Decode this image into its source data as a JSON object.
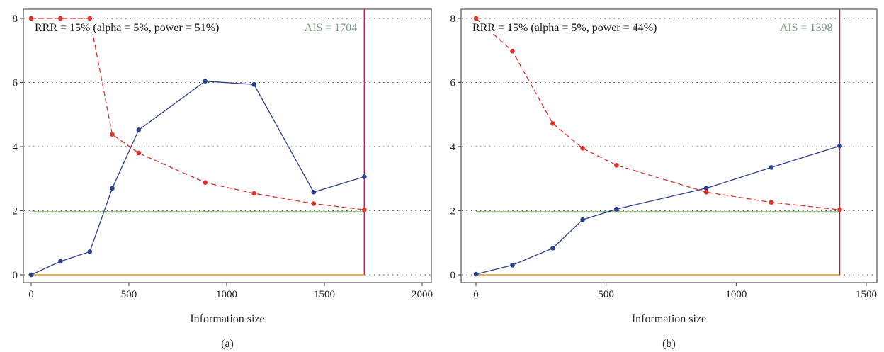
{
  "chart_data": [
    {
      "type": "line",
      "panel_label": "(a)",
      "xlabel": "Information size",
      "ylabel": "",
      "xlim": [
        0,
        2000
      ],
      "ylim": [
        0,
        8
      ],
      "xticks": [
        0,
        500,
        1000,
        1500,
        2000
      ],
      "yticks": [
        0,
        2,
        4,
        6,
        8
      ],
      "grid": "dotted horizontal",
      "annotation": "RRR = 15% (alpha = 5%, power = 51%)",
      "ais": {
        "label": "AIS = 1704",
        "x": 1704,
        "color": "#c2185b",
        "label_color": "#7a9e87"
      },
      "reference_lines": [
        {
          "y": 1.96,
          "color": "#4a7a3a"
        },
        {
          "y": 0,
          "color": "#e69500"
        }
      ],
      "series": [
        {
          "color": "#2a3f8f",
          "dash": "solid",
          "x": [
            0,
            150,
            300,
            415,
            550,
            890,
            1140,
            1445,
            1704
          ],
          "y": [
            0.0,
            0.42,
            0.72,
            2.7,
            4.52,
            6.04,
            5.94,
            2.58,
            3.06
          ]
        },
        {
          "color": "#e0302a",
          "dash": "dashed",
          "x": [
            0,
            150,
            300,
            415,
            550,
            890,
            1140,
            1445,
            1704
          ],
          "y": [
            8.0,
            8.0,
            8.0,
            4.38,
            3.8,
            2.88,
            2.54,
            2.22,
            2.03
          ]
        }
      ]
    },
    {
      "type": "line",
      "panel_label": "(b)",
      "xlabel": "Information size",
      "ylabel": "",
      "xlim": [
        0,
        1500
      ],
      "ylim": [
        0,
        8
      ],
      "xticks": [
        0,
        500,
        1000,
        1500
      ],
      "yticks": [
        0,
        2,
        4,
        6,
        8
      ],
      "grid": "dotted horizontal",
      "annotation": "RRR = 15% (alpha = 5%, power = 44%)",
      "ais": {
        "label": "AIS = 1398",
        "x": 1398,
        "color": "#c2185b",
        "label_color": "#7a9e87"
      },
      "reference_lines": [
        {
          "y": 1.96,
          "color": "#4a7a3a"
        },
        {
          "y": 0,
          "color": "#e69500"
        }
      ],
      "series": [
        {
          "color": "#2a3f8f",
          "dash": "solid",
          "x": [
            0,
            140,
            295,
            410,
            540,
            885,
            1135,
            1398
          ],
          "y": [
            0.02,
            0.3,
            0.83,
            1.72,
            2.05,
            2.7,
            3.35,
            4.02
          ]
        },
        {
          "color": "#e0302a",
          "dash": "dashed",
          "x": [
            0,
            140,
            295,
            410,
            540,
            885,
            1135,
            1398
          ],
          "y": [
            8.0,
            6.98,
            4.72,
            3.95,
            3.42,
            2.58,
            2.26,
            2.03
          ]
        }
      ]
    }
  ]
}
